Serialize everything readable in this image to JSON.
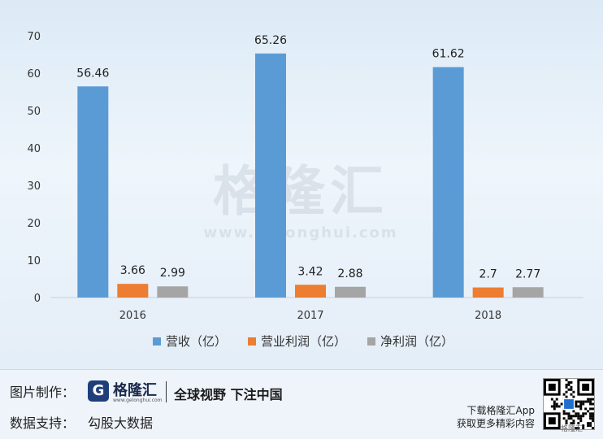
{
  "chart_data": {
    "type": "bar",
    "categories": [
      "2016",
      "2017",
      "2018"
    ],
    "series": [
      {
        "name": "营收（亿）",
        "values": [
          56.46,
          65.26,
          61.62
        ],
        "color": "#5b9bd5"
      },
      {
        "name": "营业利润（亿）",
        "values": [
          3.66,
          3.42,
          2.7
        ],
        "color": "#ed7d31"
      },
      {
        "name": "净利润（亿）",
        "values": [
          2.99,
          2.88,
          2.77
        ],
        "color": "#a5a5a5"
      }
    ],
    "data_labels": [
      [
        "56.46",
        "65.26",
        "61.62"
      ],
      [
        "3.66",
        "3.42",
        "2.7"
      ],
      [
        "2.99",
        "2.88",
        "2.77"
      ]
    ],
    "ylim": [
      0,
      70
    ],
    "yticks": [
      "0",
      "10",
      "20",
      "30",
      "40",
      "50",
      "60",
      "70"
    ],
    "legend_position": "bottom",
    "grid": false
  },
  "watermark": {
    "text": "格隆汇",
    "url": "www.gelonghui.com"
  },
  "footer": {
    "credit_label": "图片制作：",
    "logo_letter": "G",
    "logo_text": "格隆汇",
    "logo_url": "www.gelonghui.com",
    "slogan": "全球视野 下注中国",
    "source_label": "数据支持：",
    "source_value": "勾股大数据",
    "app_line1": "下载格隆汇App",
    "app_line2": "获取更多精彩内容",
    "qr_note": "格隆汇"
  },
  "colors": {
    "revenue": "#5b9bd5",
    "op_profit": "#ed7d31",
    "net_profit": "#a5a5a5"
  }
}
